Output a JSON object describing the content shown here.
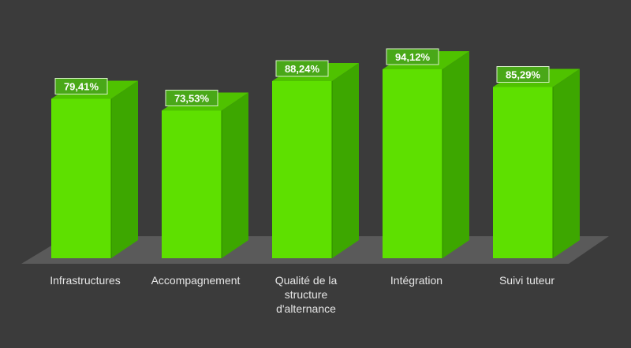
{
  "chart_data": {
    "type": "bar",
    "categories": [
      "Infrastructures",
      "Accompagnement",
      "Qualité de la structure d'alternance",
      "Intégration",
      "Suivi tuteur"
    ],
    "category_lines": [
      [
        "Infrastructures"
      ],
      [
        "Accompagnement"
      ],
      [
        "Qualité de la",
        "structure",
        "d'alternance"
      ],
      [
        "Intégration"
      ],
      [
        "Suivi tuteur"
      ]
    ],
    "values": [
      79.41,
      73.53,
      88.24,
      94.12,
      85.29
    ],
    "value_labels": [
      "79,41%",
      "73,53%",
      "88,24%",
      "94,12%",
      "85,29%"
    ],
    "unit": "%",
    "ylim": [
      0,
      100
    ],
    "grid": false,
    "legend": "none",
    "three_d": true,
    "colors": {
      "background": "#3b3b3b",
      "floor": "#5a5a5a",
      "bar_front": "#5ee000",
      "bar_side": "#3da700",
      "bar_top": "#4fc200",
      "label_box": "#49a818",
      "text": "#e6e6e6"
    }
  }
}
